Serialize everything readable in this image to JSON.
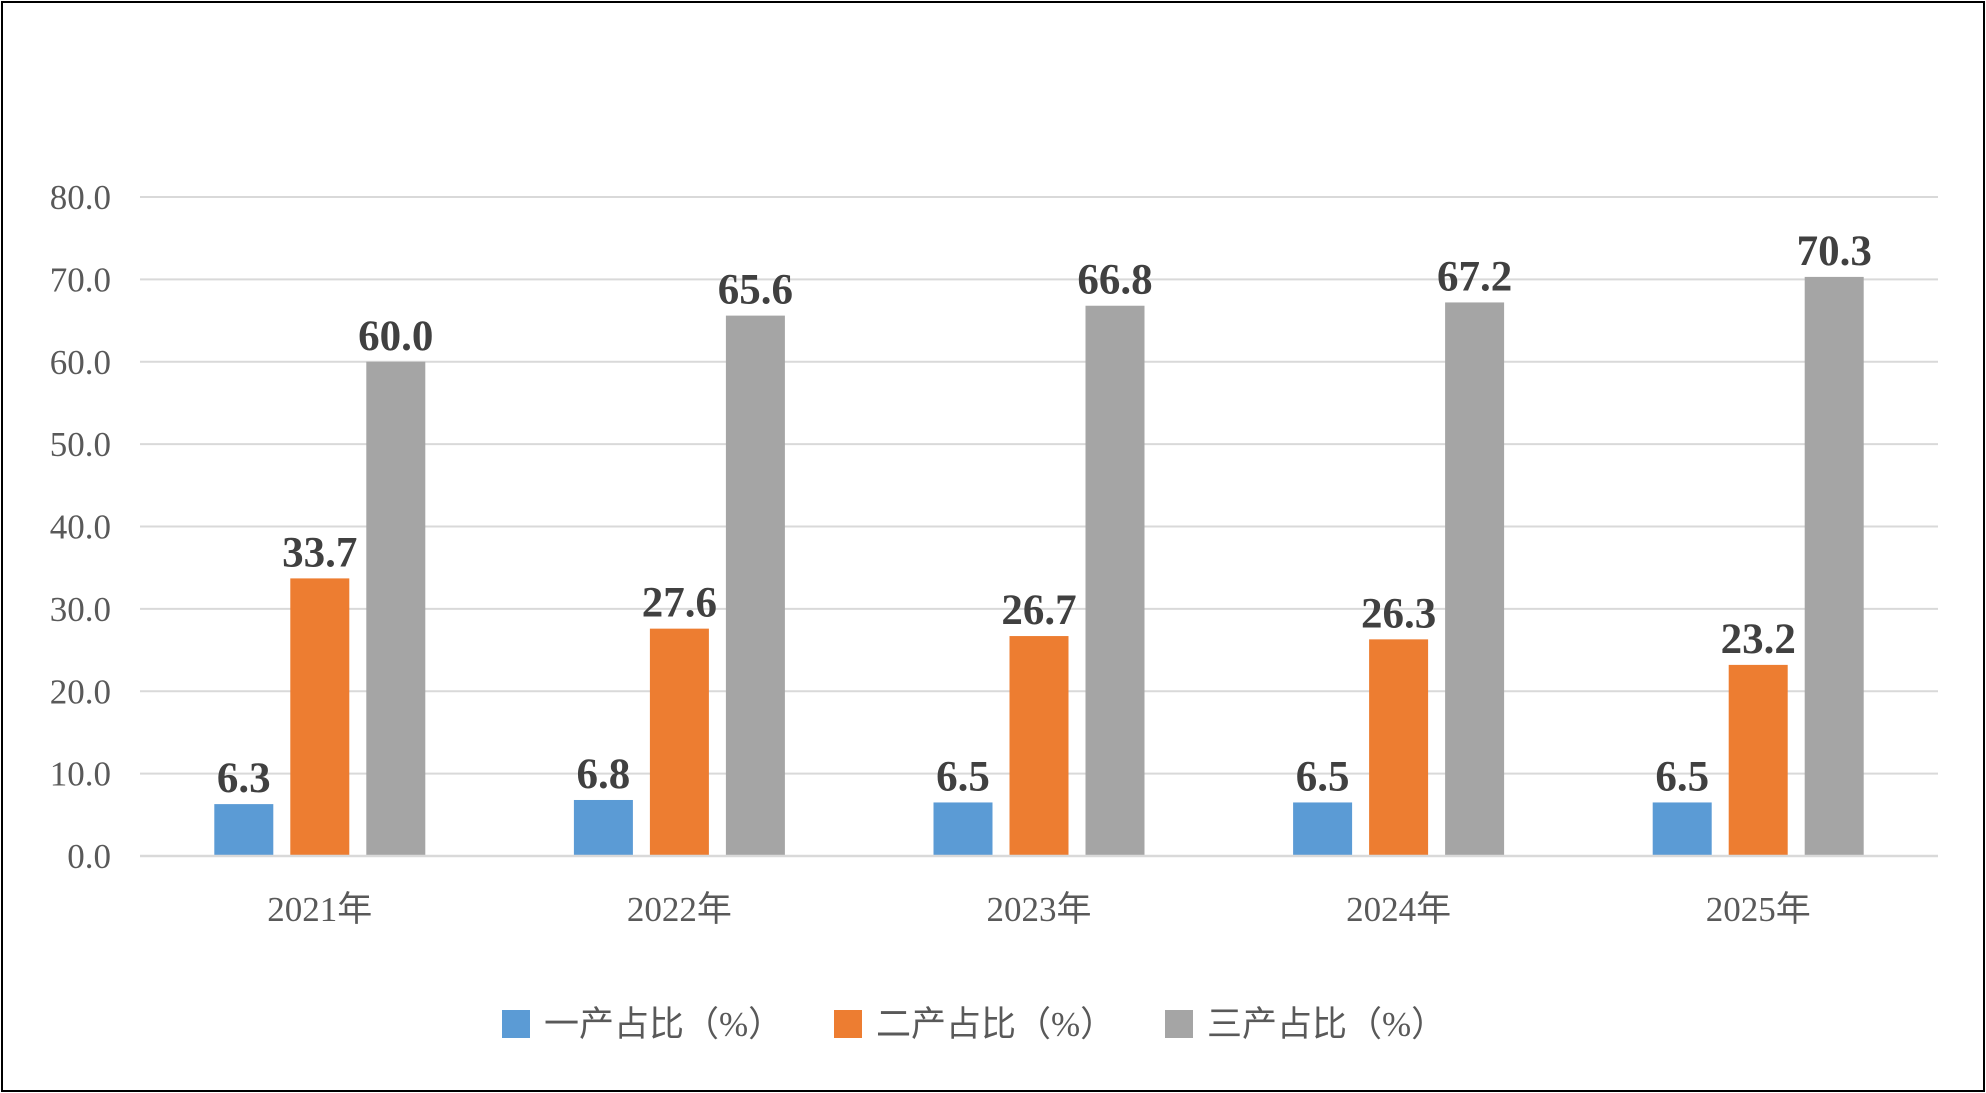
{
  "chart_data": {
    "type": "bar",
    "title": "",
    "xlabel": "",
    "ylabel": "",
    "categories": [
      "2021年",
      "2022年",
      "2023年",
      "2024年",
      "2025年"
    ],
    "series": [
      {
        "name": "一产占比（%）",
        "values": [
          6.3,
          6.8,
          6.5,
          6.5,
          6.5
        ],
        "color": "#5B9BD5"
      },
      {
        "name": "二产占比（%）",
        "values": [
          33.7,
          27.6,
          26.7,
          26.3,
          23.2
        ],
        "color": "#ED7D31"
      },
      {
        "name": "三产占比（%）",
        "values": [
          60.0,
          65.6,
          66.8,
          67.2,
          70.3
        ],
        "color": "#A5A5A5"
      }
    ],
    "ylim": [
      0,
      80
    ],
    "yticks": [
      0,
      10,
      20,
      30,
      40,
      50,
      60,
      70,
      80
    ],
    "ytick_labels": [
      "0.0",
      "10.0",
      "20.0",
      "30.0",
      "40.0",
      "50.0",
      "60.0",
      "70.0",
      "80.0"
    ],
    "grid": true,
    "data_labels": true,
    "legend_position": "bottom"
  }
}
